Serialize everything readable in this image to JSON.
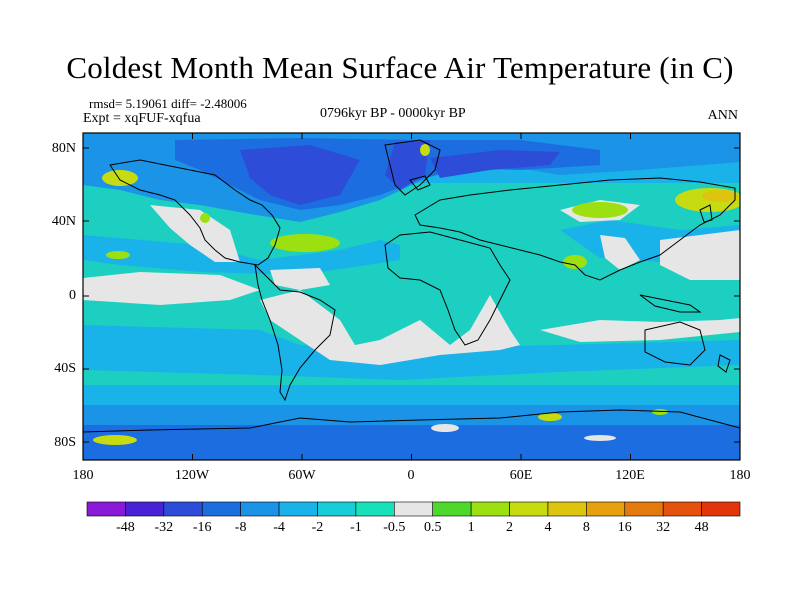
{
  "title": "Coldest Month Mean Surface Air Temperature (in C)",
  "stats_line": "rmsd= 5.19061 diff= -2.48006",
  "expt_line": "Expt = xqFUF-xqfua",
  "period": "0796kyr BP - 0000kyr BP",
  "season": "ANN",
  "lat_labels": [
    "80N",
    "40N",
    "0",
    "40S",
    "80S"
  ],
  "lon_labels": [
    "180",
    "120W",
    "60W",
    "0",
    "60E",
    "120E",
    "180"
  ],
  "colorbar": {
    "labels": [
      "-48",
      "-32",
      "-16",
      "-8",
      "-4",
      "-2",
      "-1",
      "-0.5",
      "0.5",
      "1",
      "2",
      "4",
      "8",
      "16",
      "32",
      "48"
    ],
    "colors": [
      "#8a1ad8",
      "#4a22d6",
      "#2d4cd8",
      "#1c6ee0",
      "#1b93e6",
      "#19b3ea",
      "#17cdd6",
      "#18e0b8",
      "#e6e6e6",
      "#4fd82c",
      "#9ce012",
      "#c6dc10",
      "#ddc40e",
      "#e5a10e",
      "#e4790e",
      "#e5520e",
      "#e2350c"
    ]
  },
  "palette": {
    "ocean_base": "#1ccfc0",
    "neutral": "#e6e6e6",
    "cold_light": "#19b3ea",
    "cold_mid": "#1b93e6",
    "cold_strong": "#1c6ee0",
    "cold_deep": "#2d4cd8",
    "cold_extreme": "#4a22d6",
    "warm_light": "#9ce012",
    "warm_mid": "#c6dc10",
    "warm_strong": "#ddc40e",
    "coast": "#000000"
  }
}
